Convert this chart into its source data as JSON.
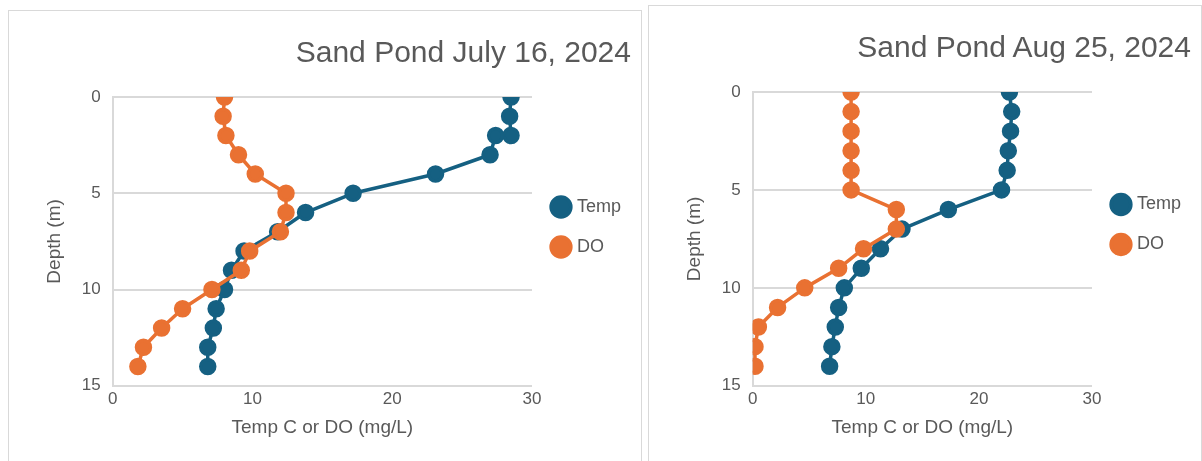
{
  "chart_data": [
    {
      "type": "line",
      "title": "Sand Pond July 16, 2024",
      "xlabel": "Temp C or DO (mg/L)",
      "ylabel": "Depth (m)",
      "xlim": [
        0,
        30
      ],
      "xticks": [
        0,
        10,
        20,
        30
      ],
      "ylim": [
        15,
        0
      ],
      "yticks": [
        0,
        5,
        10,
        15
      ],
      "grid": "y",
      "legend": "right",
      "marker": "circle",
      "line_style": "solid",
      "series": [
        {
          "name": "Temp",
          "color": "#156082",
          "x": [
            28.5,
            28.4,
            28.5,
            27.4,
            27.0,
            23.1,
            17.2,
            13.8,
            11.8,
            9.4,
            8.5,
            8.0,
            7.4,
            7.2,
            6.8,
            6.8
          ],
          "values": [
            0,
            1,
            2,
            2,
            3,
            4,
            5,
            6,
            7,
            8,
            9,
            10,
            11,
            12,
            13,
            14
          ]
        },
        {
          "name": "DO",
          "color": "#e97132",
          "x": [
            8.0,
            7.9,
            8.1,
            9.0,
            10.2,
            12.4,
            12.4,
            12.0,
            9.8,
            9.2,
            7.1,
            5.0,
            3.5,
            2.2,
            1.8
          ],
          "values": [
            0,
            1,
            2,
            3,
            4,
            5,
            6,
            7,
            8,
            9,
            10,
            11,
            12,
            13,
            14
          ]
        }
      ]
    },
    {
      "type": "line",
      "title": "Sand Pond Aug 25, 2024",
      "xlabel": "Temp C or DO (mg/L)",
      "ylabel": "Depth (m)",
      "xlim": [
        0,
        30
      ],
      "xticks": [
        0,
        10,
        20,
        30
      ],
      "ylim": [
        15,
        0
      ],
      "yticks": [
        0,
        5,
        10,
        15
      ],
      "grid": "y",
      "legend": "right",
      "marker": "circle",
      "line_style": "solid",
      "series": [
        {
          "name": "Temp",
          "color": "#156082",
          "x": [
            22.7,
            22.9,
            22.8,
            22.6,
            22.5,
            22.0,
            17.3,
            13.2,
            11.3,
            9.6,
            8.1,
            7.6,
            7.3,
            7.0,
            6.8
          ],
          "values": [
            0,
            1,
            2,
            3,
            4,
            5,
            6,
            7,
            8,
            9,
            10,
            11,
            12,
            13,
            14
          ]
        },
        {
          "name": "DO",
          "color": "#e97132",
          "x": [
            8.7,
            8.7,
            8.7,
            8.7,
            8.7,
            8.7,
            12.7,
            12.7,
            9.8,
            7.6,
            4.6,
            2.2,
            0.5,
            0.2,
            0.2
          ],
          "values": [
            0,
            1,
            2,
            3,
            4,
            5,
            6,
            7,
            8,
            9,
            10,
            11,
            12,
            13,
            14
          ]
        }
      ]
    }
  ]
}
